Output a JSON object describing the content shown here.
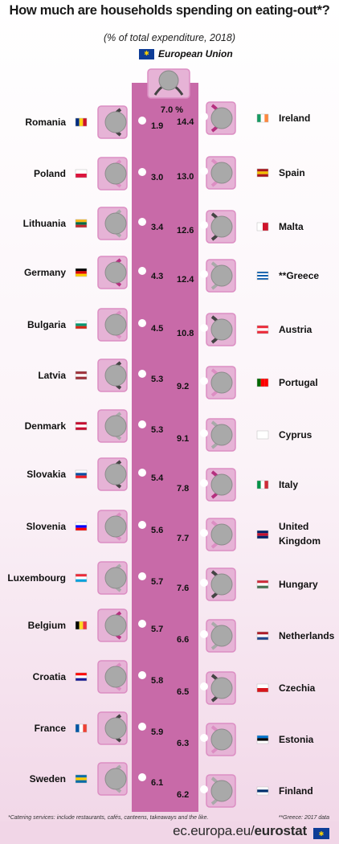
{
  "title": "How much are households spending on eating-out*?",
  "subtitle": "(% of total expenditure, 2018)",
  "eu_label": "European Union",
  "footnote_left": "*Catering services: include restaurants, cafés, canteens, takeaways and the like.",
  "footnote_right": "**Greece: 2017 data",
  "footer_domain": "ec.europa.eu/",
  "footer_brand": "eurostat",
  "colors": {
    "table": "#c86aa8",
    "magenta": "#b5307f",
    "pink": "#dc8ec3",
    "light_pink": "#e6b3d6",
    "grey": "#a9a9a9",
    "dark": "#444444"
  },
  "chart_data": {
    "type": "table",
    "unit": "%",
    "eu": {
      "name": "European Union",
      "value": 7.0,
      "label": "7.0 %"
    },
    "left": [
      {
        "country": "Romania",
        "value": 1.9
      },
      {
        "country": "Poland",
        "value": 3.0
      },
      {
        "country": "Lithuania",
        "value": 3.4
      },
      {
        "country": "Germany",
        "value": 4.3
      },
      {
        "country": "Bulgaria",
        "value": 4.5
      },
      {
        "country": "Latvia",
        "value": 5.3
      },
      {
        "country": "Denmark",
        "value": 5.3
      },
      {
        "country": "Slovakia",
        "value": 5.4
      },
      {
        "country": "Slovenia",
        "value": 5.6
      },
      {
        "country": "Luxembourg",
        "value": 5.7
      },
      {
        "country": "Belgium",
        "value": 5.7
      },
      {
        "country": "Croatia",
        "value": 5.8
      },
      {
        "country": "France",
        "value": 5.9
      },
      {
        "country": "Sweden",
        "value": 6.1
      }
    ],
    "right": [
      {
        "country": "Ireland",
        "value": 14.4
      },
      {
        "country": "Spain",
        "value": 13.0
      },
      {
        "country": "Malta",
        "value": 12.6
      },
      {
        "country": "**Greece",
        "value": 12.4
      },
      {
        "country": "Austria",
        "value": 10.8
      },
      {
        "country": "Portugal",
        "value": 9.2
      },
      {
        "country": "Cyprus",
        "value": 9.1
      },
      {
        "country": "Italy",
        "value": 7.8
      },
      {
        "country": "United Kingdom",
        "value": 7.7
      },
      {
        "country": "Hungary",
        "value": 7.6
      },
      {
        "country": "Netherlands",
        "value": 6.6
      },
      {
        "country": "Czechia",
        "value": 6.5
      },
      {
        "country": "Estonia",
        "value": 6.3
      },
      {
        "country": "Finland",
        "value": 6.2
      }
    ]
  }
}
